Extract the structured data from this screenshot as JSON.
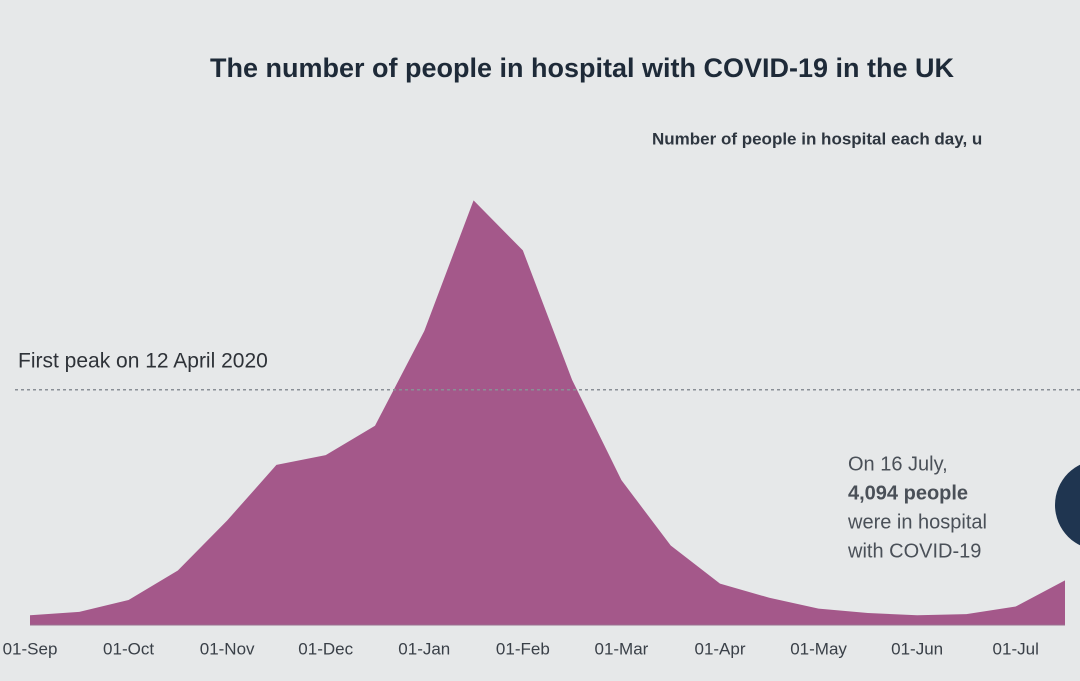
{
  "chart_data": {
    "type": "area",
    "title": "The number of people in hospital with COVID-19 in the UK",
    "subtitle": "Number of people in hospital each day, u",
    "categories": [
      "01-Sep",
      null,
      "01-Oct",
      null,
      "01-Nov",
      null,
      "01-Dec",
      null,
      "01-Jan",
      null,
      "01-Feb",
      null,
      "01-Mar",
      null,
      "01-Apr",
      null,
      "01-May",
      null,
      "01-Jun",
      null,
      "01-Jul",
      null
    ],
    "values": [
      900,
      1200,
      2300,
      5000,
      9600,
      14700,
      15600,
      18300,
      27000,
      39000,
      34400,
      22500,
      13300,
      7300,
      3800,
      2500,
      1500,
      1100,
      900,
      1000,
      1700,
      4094
    ],
    "color": "#a4588a",
    "ylim": [
      0,
      45000
    ],
    "reference_line": {
      "label": "First peak on 12 April 2020",
      "value": 21600
    },
    "annotation": [
      "On 16 July,",
      "4,094 people",
      "were in hospital",
      "with COVID-19"
    ]
  }
}
